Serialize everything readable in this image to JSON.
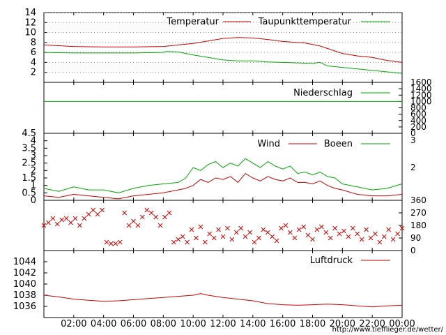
{
  "chart_data": [
    {
      "type": "line",
      "title": "",
      "ylim": [
        0,
        14
      ],
      "y_ticks": [
        "2",
        "4",
        "6",
        "8",
        "10",
        "12",
        "14"
      ],
      "grid": true,
      "legend_position": "top-right",
      "series": [
        {
          "name": "Temperatur",
          "color": "#cc0000",
          "x": [
            0,
            2,
            4,
            6,
            8,
            9,
            10,
            11,
            12,
            13,
            14,
            15,
            16,
            17,
            17.5,
            18.5,
            19.5,
            20,
            21,
            22,
            23,
            24
          ],
          "values": [
            7.5,
            7.2,
            7.1,
            7.1,
            7.2,
            7.5,
            7.8,
            8.3,
            8.8,
            9.0,
            8.9,
            8.6,
            8.2,
            8.0,
            7.9,
            7.3,
            6.3,
            5.8,
            5.3,
            5.0,
            4.4,
            4.0
          ]
        },
        {
          "name": "Taupunkttemperatur",
          "color": "#00aa00",
          "x": [
            0,
            2,
            4,
            6,
            8,
            8.2,
            9,
            10,
            11,
            12,
            13,
            14,
            15,
            16,
            17,
            18,
            18.5,
            19,
            20,
            21,
            22,
            23,
            24
          ],
          "values": [
            6.0,
            5.9,
            5.9,
            5.9,
            6.0,
            6.2,
            6.1,
            5.5,
            5.0,
            4.5,
            4.3,
            4.3,
            4.1,
            4.0,
            3.9,
            3.8,
            4.0,
            3.3,
            3.0,
            2.7,
            2.4,
            2.1,
            1.8
          ]
        }
      ]
    },
    {
      "type": "line",
      "ylim": [
        0,
        1600
      ],
      "y_ticks": [
        "0",
        "200",
        "400",
        "600",
        "800",
        "1000",
        "1200",
        "1400",
        "1600"
      ],
      "legend_position": "top-right",
      "series": [
        {
          "name": "Niederschlag",
          "color": "#00aa00",
          "x": [
            0,
            24
          ],
          "values": [
            1000,
            1000
          ]
        }
      ]
    },
    {
      "type": "line",
      "ylim": [
        0,
        4.5
      ],
      "y_ticks": [
        "0",
        "0.5",
        "1",
        "1.5",
        "2",
        "2.5",
        "3",
        "3.5",
        "4",
        "4.5"
      ],
      "y2_ticks": [
        "2",
        "3"
      ],
      "legend_position": "top-right",
      "series": [
        {
          "name": "Wind",
          "color": "#cc0000",
          "x": [
            0,
            1,
            2,
            3,
            4,
            5,
            6,
            7,
            8,
            9,
            9.5,
            10,
            10.5,
            11,
            11.5,
            12,
            12.5,
            13,
            13.5,
            14,
            14.5,
            15,
            15.5,
            16,
            16.5,
            17,
            17.5,
            18,
            18.5,
            19,
            19.5,
            20,
            21,
            22,
            23,
            24
          ],
          "values": [
            0.3,
            0.2,
            0.4,
            0.3,
            0.2,
            0.1,
            0.3,
            0.4,
            0.5,
            0.7,
            0.8,
            1.0,
            1.4,
            1.2,
            1.5,
            1.4,
            1.6,
            1.2,
            1.8,
            1.5,
            1.3,
            1.6,
            1.4,
            1.3,
            1.5,
            1.2,
            1.2,
            1.1,
            1.3,
            1.0,
            0.8,
            0.7,
            0.4,
            0.3,
            0.3,
            0.4
          ]
        },
        {
          "name": "Boeen",
          "color": "#00aa00",
          "x": [
            0,
            1,
            2,
            3,
            4,
            5,
            6,
            7,
            8,
            9,
            9.5,
            10,
            10.5,
            11,
            11.5,
            12,
            12.5,
            13,
            13.5,
            14,
            14.5,
            15,
            15.5,
            16,
            16.5,
            17,
            17.5,
            18,
            18.5,
            19,
            19.5,
            20,
            21,
            22,
            23,
            24
          ],
          "values": [
            0.8,
            0.6,
            0.9,
            0.7,
            0.7,
            0.5,
            0.8,
            1.0,
            1.1,
            1.2,
            1.5,
            2.2,
            2.0,
            2.4,
            2.6,
            2.2,
            2.5,
            2.3,
            2.8,
            2.5,
            2.2,
            2.6,
            2.3,
            2.1,
            2.3,
            1.8,
            1.9,
            1.7,
            1.9,
            1.6,
            1.5,
            1.1,
            0.9,
            0.7,
            0.8,
            1.1
          ]
        }
      ]
    },
    {
      "type": "scatter",
      "ylim": [
        0,
        360
      ],
      "y_ticks": [
        "0",
        "90",
        "180",
        "270",
        "360"
      ],
      "series": [
        {
          "name": "",
          "color": "#cc0000",
          "x": [
            0,
            0.3,
            0.6,
            0.9,
            1.2,
            1.5,
            1.8,
            2.1,
            2.4,
            2.7,
            3.0,
            3.3,
            3.6,
            3.9,
            4.2,
            4.5,
            4.8,
            5.1,
            5.4,
            5.7,
            6.0,
            6.3,
            6.6,
            6.9,
            7.2,
            7.5,
            7.8,
            8.1,
            8.4,
            8.7,
            9.0,
            9.3,
            9.6,
            9.9,
            10.2,
            10.5,
            10.8,
            11.1,
            11.4,
            11.7,
            12.0,
            12.3,
            12.6,
            12.9,
            13.2,
            13.5,
            13.8,
            14.1,
            14.4,
            14.7,
            15.0,
            15.3,
            15.6,
            15.9,
            16.2,
            16.5,
            16.8,
            17.1,
            17.4,
            17.7,
            18.0,
            18.3,
            18.6,
            18.9,
            19.2,
            19.5,
            19.8,
            20.1,
            20.4,
            20.7,
            21.0,
            21.3,
            21.6,
            21.9,
            22.2,
            22.5,
            22.8,
            23.1,
            23.4,
            23.7,
            24.0
          ],
          "values": [
            180,
            200,
            230,
            190,
            220,
            230,
            200,
            230,
            180,
            230,
            260,
            290,
            260,
            290,
            60,
            50,
            50,
            60,
            270,
            180,
            210,
            180,
            240,
            290,
            270,
            240,
            180,
            240,
            270,
            60,
            80,
            100,
            60,
            150,
            90,
            170,
            60,
            120,
            90,
            150,
            100,
            160,
            80,
            130,
            160,
            100,
            130,
            60,
            90,
            150,
            130,
            100,
            70,
            160,
            180,
            130,
            90,
            150,
            170,
            110,
            80,
            150,
            170,
            130,
            90,
            160,
            120,
            140,
            100,
            160,
            120,
            80,
            150,
            90,
            120,
            60,
            100,
            150,
            80,
            120,
            160
          ]
        }
      ]
    },
    {
      "type": "line",
      "ylim": [
        1034,
        1046
      ],
      "y_ticks": [
        "1036",
        "1038",
        "1040",
        "1042",
        "1044"
      ],
      "legend_position": "top-right",
      "series": [
        {
          "name": "Luftdruck",
          "color": "#cc0000",
          "x": [
            0,
            1,
            2,
            3,
            4,
            5,
            6,
            7,
            8,
            9,
            10,
            10.5,
            11,
            12,
            13,
            14,
            15,
            16,
            17,
            18,
            19,
            20,
            21,
            22,
            23,
            24
          ],
          "values": [
            1038.0,
            1037.7,
            1037.3,
            1037.1,
            1036.9,
            1037.0,
            1037.2,
            1037.4,
            1037.6,
            1037.8,
            1038.0,
            1038.3,
            1038.0,
            1037.6,
            1037.3,
            1037.0,
            1036.5,
            1036.3,
            1036.2,
            1036.3,
            1036.4,
            1036.3,
            1036.1,
            1035.9,
            1036.1,
            1036.2
          ]
        }
      ]
    }
  ],
  "x_axis": {
    "ticks": [
      "02:00",
      "04:00",
      "06:00",
      "08:00",
      "10:00",
      "12:00",
      "14:00",
      "16:00",
      "18:00",
      "20:00",
      "22:00",
      "00:00"
    ]
  },
  "footer": {
    "url": "http://www.tiefflieger.de/wetter/"
  },
  "colors": {
    "red": "#cc0000",
    "green": "#00aa00",
    "grid": "#888888"
  }
}
